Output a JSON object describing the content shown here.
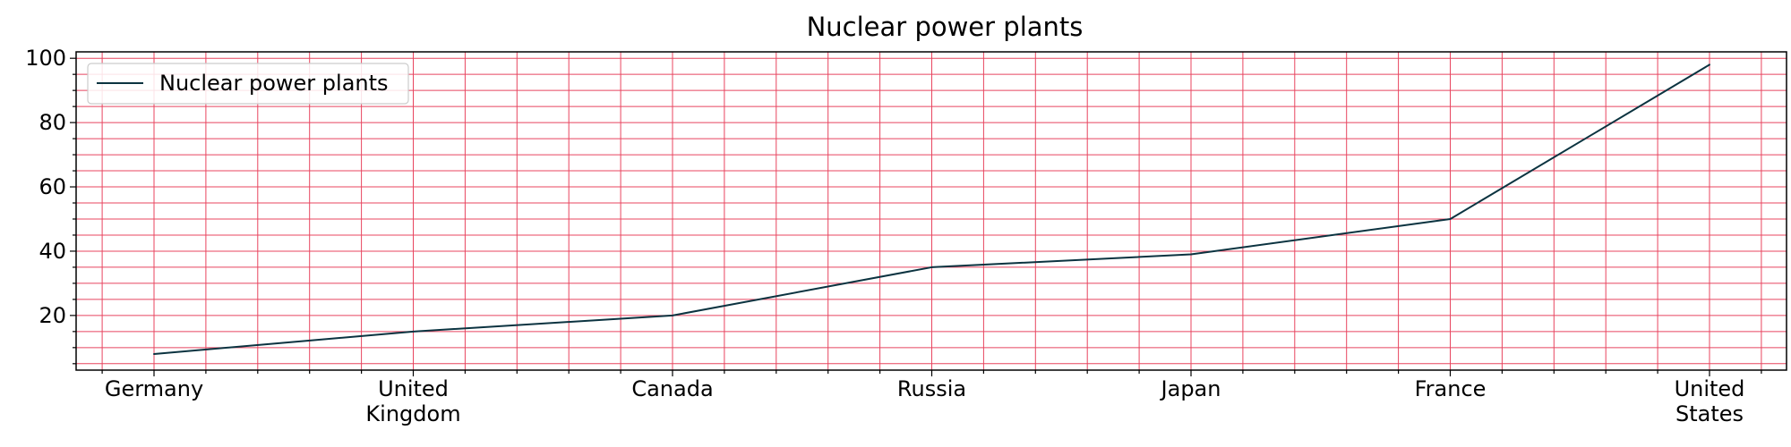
{
  "chart_data": {
    "type": "line",
    "title": "Nuclear power plants",
    "xlabel": "",
    "ylabel": "",
    "categories": [
      "Germany",
      "United Kingdom",
      "Canada",
      "Russia",
      "Japan",
      "France",
      "United States"
    ],
    "series": [
      {
        "name": "Nuclear power plants",
        "values": [
          8,
          15,
          20,
          35,
          39,
          50,
          98
        ],
        "color": "#0b3340"
      }
    ],
    "ylim": [
      3,
      102
    ],
    "yticks": [
      20,
      40,
      60,
      80,
      100
    ],
    "grid": true,
    "grid_color": "#e8455f",
    "legend_position": "upper left"
  }
}
